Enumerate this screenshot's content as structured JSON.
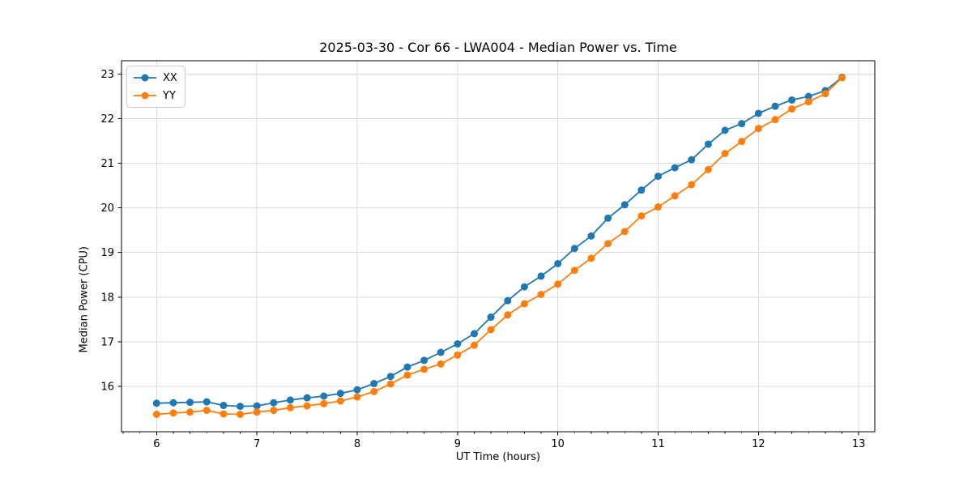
{
  "figure": {
    "background": "#ffffff"
  },
  "chart_data": {
    "type": "line",
    "title": "2025-03-30 - Cor 66 - LWA004 - Median Power vs. Time",
    "xlabel": "UT Time (hours)",
    "ylabel": "Median Power (CPU)",
    "xlim": [
      5.65,
      13.16
    ],
    "ylim": [
      14.98,
      23.3
    ],
    "xticks": [
      6,
      7,
      8,
      9,
      10,
      11,
      12,
      13
    ],
    "yticks": [
      16,
      17,
      18,
      19,
      20,
      21,
      22,
      23
    ],
    "x_minor_interval": 0.1667,
    "grid": true,
    "grid_color": "#dcdcdc",
    "spine_color": "#000000",
    "legend_position": "upper left",
    "marker": "o",
    "x": [
      6.0,
      6.167,
      6.333,
      6.5,
      6.667,
      6.833,
      7.0,
      7.167,
      7.333,
      7.5,
      7.667,
      7.833,
      8.0,
      8.167,
      8.333,
      8.5,
      8.667,
      8.833,
      9.0,
      9.167,
      9.333,
      9.5,
      9.667,
      9.833,
      10.0,
      10.167,
      10.333,
      10.5,
      10.667,
      10.833,
      11.0,
      11.167,
      11.333,
      11.5,
      11.667,
      11.833,
      12.0,
      12.167,
      12.333,
      12.5,
      12.667,
      12.833
    ],
    "series": [
      {
        "name": "XX",
        "color": "#1f77b4",
        "values": [
          15.62,
          15.63,
          15.64,
          15.65,
          15.57,
          15.55,
          15.56,
          15.63,
          15.69,
          15.74,
          15.78,
          15.84,
          15.92,
          16.06,
          16.22,
          16.43,
          16.58,
          16.76,
          16.95,
          17.18,
          17.55,
          17.92,
          18.23,
          18.47,
          18.75,
          19.09,
          19.37,
          19.77,
          20.07,
          20.4,
          20.71,
          20.9,
          21.08,
          21.43,
          21.74,
          21.89,
          22.12,
          22.28,
          22.42,
          22.5,
          22.63,
          22.93
        ]
      },
      {
        "name": "YY",
        "color": "#ff7f0e",
        "values": [
          15.37,
          15.4,
          15.42,
          15.46,
          15.38,
          15.37,
          15.42,
          15.46,
          15.52,
          15.56,
          15.61,
          15.67,
          15.76,
          15.88,
          16.05,
          16.25,
          16.38,
          16.5,
          16.7,
          16.92,
          17.27,
          17.6,
          17.85,
          18.06,
          18.29,
          18.6,
          18.87,
          19.2,
          19.47,
          19.82,
          20.02,
          20.27,
          20.52,
          20.86,
          21.22,
          21.49,
          21.78,
          21.98,
          22.22,
          22.38,
          22.56,
          22.92
        ]
      }
    ]
  }
}
